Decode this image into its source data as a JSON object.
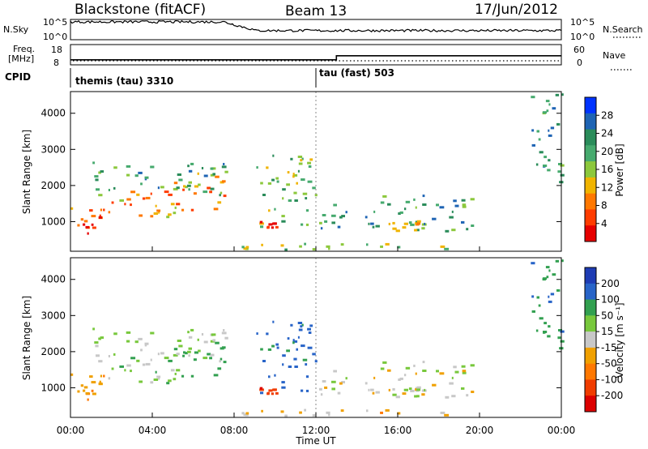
{
  "header": {
    "station": "Blackstone (fitACF)",
    "beam": "Beam 13",
    "date": "17/Jun/2012"
  },
  "top_panels": {
    "nsky_label": "N.Sky",
    "nsky_ticks": [
      "10^5",
      "10^0"
    ],
    "nsearch_label": "N.Search",
    "nsearch_ticks": [
      "10^5",
      "10^0"
    ],
    "freq_label_1": "Freq.",
    "freq_label_2": "[MHz]",
    "freq_ticks": [
      "18",
      "8"
    ],
    "nave_label": "Nave",
    "nave_ticks": [
      "60",
      "0"
    ],
    "cpid_label": "CPID",
    "cpid_segments": [
      {
        "name": "themis (tau) 3310",
        "start_hour": 0.0
      },
      {
        "name": "tau (fast) 503",
        "start_hour": 12.0
      }
    ]
  },
  "x_axis": {
    "label": "Time UT",
    "ticks": [
      "00:00",
      "04:00",
      "08:00",
      "12:00",
      "16:00",
      "20:00",
      "00:00"
    ]
  },
  "power_panel": {
    "ylabel": "Slant Range [km]",
    "yticks": [
      "1000",
      "2000",
      "3000",
      "4000"
    ],
    "colorbar_label": "Power [dB]",
    "colorbar_ticks": [
      "28",
      "24",
      "20",
      "16",
      "12",
      "8",
      "4"
    ],
    "colors": [
      "#0033ff",
      "#1e64b4",
      "#2a8c5a",
      "#46aa6e",
      "#8cc83c",
      "#f0b400",
      "#ff7800",
      "#ff3c00",
      "#e60000"
    ]
  },
  "velocity_panel": {
    "ylabel": "Slant Range [km]",
    "yticks": [
      "1000",
      "2000",
      "3000",
      "4000"
    ],
    "colorbar_label": "Velocity [m s⁻¹]",
    "colorbar_ticks": [
      "200",
      "100",
      "50",
      "15",
      "-15",
      "-50",
      "-100",
      "-200"
    ],
    "colors": [
      "#1e3cb4",
      "#2864c8",
      "#32a050",
      "#78c83c",
      "#c8c8c8",
      "#f0a000",
      "#ff7800",
      "#f03c00",
      "#dc0000"
    ]
  },
  "chart_data": {
    "type": "heatmap",
    "x_range_hours": [
      0,
      24
    ],
    "y_range_km": [
      180,
      4600
    ],
    "panels": [
      "Power [dB]",
      "Velocity [m s⁻¹]"
    ],
    "echo_bands": [
      {
        "t0": 0.0,
        "t1": 2.0,
        "r0": 500,
        "r1": 1400,
        "power": 24,
        "velocity": -40
      },
      {
        "t0": 2.0,
        "t1": 5.0,
        "r0": 1000,
        "r1": 1800,
        "power": 22,
        "velocity": 30
      },
      {
        "t0": 5.0,
        "t1": 7.5,
        "r0": 1200,
        "r1": 2300,
        "power": 20,
        "velocity": 60
      },
      {
        "t0": 1.0,
        "t1": 7.8,
        "r0": 1700,
        "r1": 2600,
        "power": 10,
        "velocity": 20
      },
      {
        "t0": 9.0,
        "t1": 12.0,
        "r0": 700,
        "r1": 2800,
        "power": 14,
        "velocity": 120
      },
      {
        "t0": 9.2,
        "t1": 10.2,
        "r0": 800,
        "r1": 1000,
        "power": 26,
        "velocity": -180
      },
      {
        "t0": 12.0,
        "t1": 19.8,
        "r0": 700,
        "r1": 1700,
        "power": 10,
        "velocity": 5
      },
      {
        "t0": 15.5,
        "t1": 17.0,
        "r0": 700,
        "r1": 1000,
        "power": 20,
        "velocity": 5
      },
      {
        "t0": 8.0,
        "t1": 20.0,
        "r0": 180,
        "r1": 350,
        "power": 14,
        "velocity": -30
      },
      {
        "t0": 22.5,
        "t1": 24.0,
        "r0": 2000,
        "r1": 4500,
        "power": 8,
        "velocity": 80
      }
    ],
    "nsky_profile": [
      {
        "hour": 0,
        "value": 0.9
      },
      {
        "hour": 7,
        "value": 0.85
      },
      {
        "hour": 9,
        "value": 0.45
      },
      {
        "hour": 24,
        "value": 0.4
      }
    ],
    "freq_mhz": [
      {
        "hour": 0,
        "value": 10.5
      },
      {
        "hour": 13,
        "value": 10.5
      },
      {
        "hour": 13,
        "value": 12.5
      },
      {
        "hour": 24,
        "value": 12.5
      }
    ]
  }
}
